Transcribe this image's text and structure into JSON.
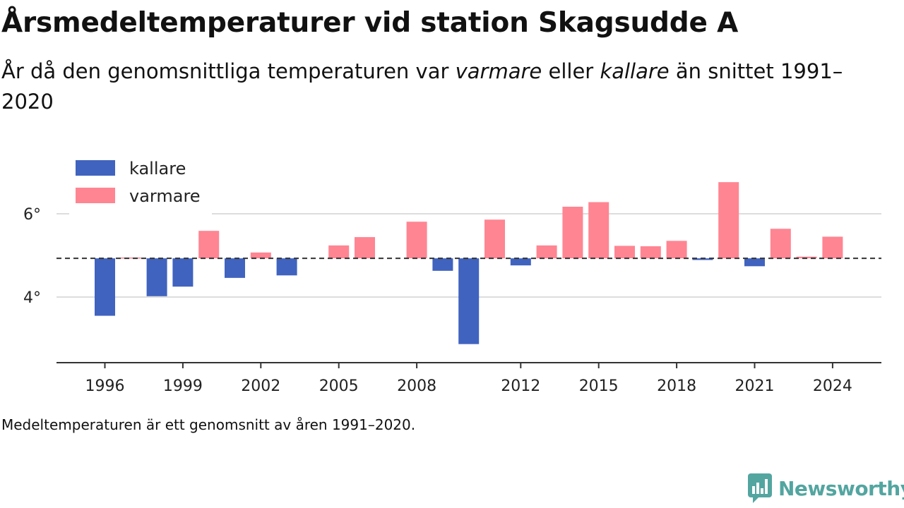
{
  "header": {
    "title": "Årsmedeltemperaturer vid station Skagsudde A",
    "subtitle_pre": "År då den genomsnittliga temperaturen var ",
    "subtitle_warm": "varmare",
    "subtitle_mid": " eller ",
    "subtitle_cold": "kallare",
    "subtitle_post": " än snittet 1991–2020"
  },
  "footnote": "Medeltemperaturen är ett genomsnitt av åren 1991–2020.",
  "brand": {
    "name": "Newsworthy",
    "icon": "newsworthy-logo-icon"
  },
  "colors": {
    "colder": "#4063bf",
    "warmer": "#ff8592",
    "grid": "#dddddd",
    "axis": "#333333"
  },
  "chart_data": {
    "type": "bar",
    "baseline": 4.93,
    "baseline_style": "dashed",
    "ylim": [
      2.5,
      7.0
    ],
    "yticks": [
      4,
      6
    ],
    "ytick_labels": [
      "4°",
      "6°"
    ],
    "xticks": [
      1996,
      1999,
      2002,
      2005,
      2008,
      2012,
      2015,
      2018,
      2021,
      2024
    ],
    "grid": true,
    "legend": {
      "placement": "top-left",
      "entries": [
        {
          "label": "kallare",
          "color": "#4063bf"
        },
        {
          "label": "varmare",
          "color": "#ff8592"
        }
      ]
    },
    "x": [
      1996,
      1997,
      1998,
      1999,
      2000,
      2001,
      2002,
      2003,
      2004,
      2005,
      2006,
      2007,
      2008,
      2009,
      2010,
      2011,
      2012,
      2013,
      2014,
      2015,
      2016,
      2017,
      2018,
      2019,
      2020,
      2021,
      2022,
      2023,
      2024
    ],
    "values": [
      3.55,
      4.95,
      4.02,
      4.25,
      5.59,
      4.46,
      5.07,
      4.52,
      null,
      5.24,
      5.44,
      null,
      5.81,
      4.63,
      2.87,
      5.86,
      4.76,
      5.24,
      6.17,
      6.28,
      5.23,
      5.22,
      5.35,
      4.89,
      6.76,
      4.74,
      5.64,
      4.97,
      5.45
    ]
  }
}
